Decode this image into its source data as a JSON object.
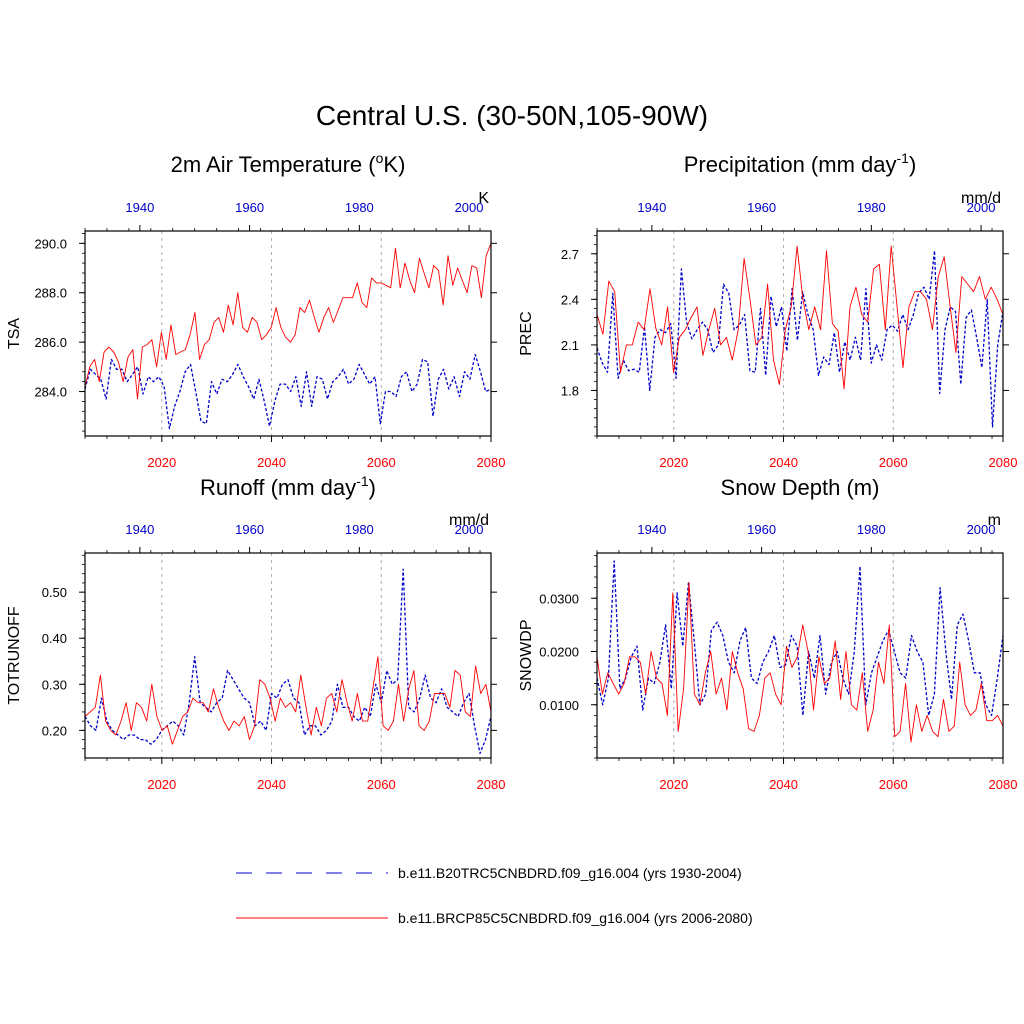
{
  "title": "Central U.S. (30-50N,105-90W)",
  "colors": {
    "historical": "#0000cc",
    "future": "#ff0000",
    "historical_axis": "#0000cc",
    "future_axis": "#ff0000",
    "grid": "#aaaaaa"
  },
  "legend": [
    {
      "label": "b.e11.B20TRC5CNBDRD.f09_g16.004 (yrs 1930-2004)",
      "style": "dashed",
      "color_key": "historical"
    },
    {
      "label": "b.e11.BRCP85C5CNBDRD.f09_g16.004 (yrs 2006-2080)",
      "style": "solid",
      "color_key": "future"
    }
  ],
  "chart_data": [
    {
      "type": "line",
      "title_main": "2m Air Temperature (",
      "title_sup": "o",
      "title_tail": "K)",
      "ylabel": "TSA",
      "units": "K",
      "ylim": [
        282.2,
        290.5
      ],
      "yticks": [
        "284.0",
        "286.0",
        "288.0",
        "290.0"
      ],
      "ytick_values": [
        284,
        286,
        288,
        290
      ],
      "top_xlim": [
        1930,
        2004
      ],
      "top_ticks": [
        1940,
        1960,
        1980,
        2000
      ],
      "bottom_xlim": [
        2006,
        2080
      ],
      "bottom_ticks": [
        2020,
        2040,
        2060,
        2080
      ],
      "series": [
        {
          "name": "historical",
          "values": [
            284.1,
            284.9,
            284.7,
            284.5,
            283.7,
            285.3,
            284.9,
            284.9,
            284.4,
            284.7,
            285.0,
            283.9,
            284.6,
            284.4,
            284.6,
            284.2,
            282.5,
            283.4,
            284.0,
            284.8,
            285.1,
            284.0,
            282.8,
            282.7,
            284.4,
            283.9,
            284.5,
            284.4,
            284.7,
            285.1,
            284.6,
            284.2,
            283.7,
            284.5,
            283.6,
            282.6,
            283.6,
            284.3,
            284.3,
            284.0,
            284.6,
            283.4,
            284.8,
            283.4,
            284.6,
            284.5,
            283.7,
            284.4,
            284.6,
            284.9,
            284.3,
            284.5,
            285.1,
            284.7,
            284.3,
            284.6,
            282.7,
            284.0,
            284.0,
            283.8,
            284.6,
            284.8,
            284.0,
            284.3,
            285.3,
            285.2,
            283.0,
            284.5,
            284.9,
            284.1,
            284.6,
            283.8,
            284.8,
            284.5,
            285.5,
            284.8,
            284.0,
            284.1
          ]
        },
        {
          "name": "future",
          "values": [
            284.2,
            285.0,
            285.3,
            284.4,
            285.6,
            285.8,
            285.6,
            285.2,
            284.4,
            285.4,
            285.7,
            283.7,
            285.8,
            285.9,
            286.1,
            285.0,
            286.4,
            285.3,
            286.7,
            285.5,
            285.6,
            285.7,
            286.3,
            287.2,
            285.3,
            285.9,
            286.1,
            286.8,
            287.0,
            286.4,
            287.5,
            286.7,
            288.0,
            286.6,
            286.4,
            287.0,
            286.8,
            286.1,
            286.3,
            286.6,
            287.4,
            286.6,
            286.2,
            286.0,
            286.3,
            287.4,
            287.2,
            287.7,
            287.0,
            286.4,
            287.0,
            287.4,
            286.8,
            287.3,
            287.8,
            287.8,
            287.8,
            288.4,
            287.6,
            287.4,
            288.6,
            288.4,
            288.4,
            288.3,
            288.2,
            289.8,
            288.2,
            289.2,
            288.5,
            288.0,
            289.4,
            288.8,
            288.2,
            289.1,
            288.9,
            287.5,
            289.5,
            288.3,
            289.0,
            288.5,
            288.0,
            289.1,
            289.0,
            287.8,
            289.5,
            290.0
          ]
        }
      ]
    },
    {
      "type": "line",
      "title_main": "Precipitation (mm day",
      "title_sup": "-1",
      "title_tail": ")",
      "ylabel": "PREC",
      "units": "mm/d",
      "ylim": [
        1.5,
        2.85
      ],
      "yticks": [
        "1.8",
        "2.1",
        "2.4",
        "2.7"
      ],
      "ytick_values": [
        1.8,
        2.1,
        2.4,
        2.7
      ],
      "top_xlim": [
        1930,
        2004
      ],
      "top_ticks": [
        1940,
        1960,
        1980,
        2000
      ],
      "bottom_xlim": [
        2006,
        2080
      ],
      "bottom_ticks": [
        2020,
        2040,
        2060,
        2080
      ],
      "series": [
        {
          "name": "historical",
          "values": [
            2.08,
            1.98,
            1.92,
            2.44,
            1.88,
            2.0,
            1.93,
            1.94,
            1.92,
            2.22,
            1.8,
            2.15,
            2.2,
            2.18,
            2.24,
            1.88,
            2.6,
            2.25,
            2.14,
            2.2,
            2.25,
            2.2,
            2.05,
            2.1,
            2.5,
            2.44,
            2.2,
            2.23,
            2.3,
            1.93,
            1.92,
            2.34,
            1.9,
            2.42,
            2.22,
            2.35,
            2.06,
            2.47,
            2.13,
            2.45,
            2.3,
            2.2,
            1.9,
            2.02,
            1.97,
            2.18,
            1.92,
            2.12,
            2.0,
            2.15,
            2.0,
            2.47,
            1.98,
            2.1,
            2.0,
            2.2,
            2.23,
            2.19,
            2.3,
            2.2,
            2.3,
            2.44,
            2.48,
            2.4,
            2.72,
            1.78,
            2.2,
            2.35,
            2.32,
            1.84,
            2.28,
            2.33,
            2.15,
            1.95,
            2.4,
            1.56,
            2.1,
            2.32
          ]
        },
        {
          "name": "future",
          "values": [
            2.3,
            2.17,
            2.52,
            2.45,
            1.92,
            2.1,
            2.1,
            2.25,
            2.2,
            2.47,
            2.21,
            2.1,
            2.35,
            1.92,
            2.15,
            2.2,
            2.28,
            2.35,
            2.03,
            2.2,
            2.34,
            2.1,
            2.15,
            2.0,
            2.2,
            2.67,
            2.4,
            2.1,
            2.15,
            2.5,
            2.0,
            1.84,
            2.2,
            2.35,
            2.75,
            2.4,
            2.2,
            2.35,
            2.2,
            2.72,
            2.24,
            2.19,
            1.81,
            2.35,
            2.48,
            2.3,
            2.25,
            2.6,
            2.63,
            2.2,
            2.75,
            2.35,
            1.95,
            2.35,
            2.45,
            2.45,
            2.4,
            2.2,
            2.55,
            2.68,
            2.36,
            2.05,
            2.55,
            2.5,
            2.45,
            2.55,
            2.4,
            2.48,
            2.4,
            2.3
          ]
        }
      ]
    },
    {
      "type": "line",
      "title_main": "Runoff (mm day",
      "title_sup": "-1",
      "title_tail": ")",
      "ylabel": "TOTRUNOFF",
      "units": "mm/d",
      "ylim": [
        0.14,
        0.585
      ],
      "yticks": [
        "0.20",
        "0.30",
        "0.40",
        "0.50"
      ],
      "ytick_values": [
        0.2,
        0.3,
        0.4,
        0.5
      ],
      "top_xlim": [
        1930,
        2004
      ],
      "top_ticks": [
        1940,
        1960,
        1980,
        2000
      ],
      "bottom_xlim": [
        2006,
        2080
      ],
      "bottom_ticks": [
        2020,
        2040,
        2060,
        2080
      ],
      "series": [
        {
          "name": "historical",
          "values": [
            0.23,
            0.21,
            0.2,
            0.27,
            0.22,
            0.2,
            0.19,
            0.18,
            0.19,
            0.19,
            0.18,
            0.18,
            0.17,
            0.18,
            0.2,
            0.21,
            0.22,
            0.21,
            0.19,
            0.26,
            0.36,
            0.26,
            0.25,
            0.24,
            0.26,
            0.27,
            0.33,
            0.31,
            0.29,
            0.27,
            0.26,
            0.21,
            0.22,
            0.2,
            0.28,
            0.27,
            0.3,
            0.31,
            0.27,
            0.26,
            0.19,
            0.21,
            0.21,
            0.19,
            0.2,
            0.22,
            0.3,
            0.25,
            0.25,
            0.23,
            0.22,
            0.25,
            0.23,
            0.3,
            0.26,
            0.33,
            0.3,
            0.31,
            0.55,
            0.25,
            0.24,
            0.27,
            0.32,
            0.27,
            0.26,
            0.29,
            0.25,
            0.24,
            0.23,
            0.26,
            0.28,
            0.21,
            0.15,
            0.18,
            0.23
          ]
        },
        {
          "name": "future",
          "values": [
            0.23,
            0.24,
            0.25,
            0.32,
            0.22,
            0.2,
            0.19,
            0.22,
            0.26,
            0.2,
            0.26,
            0.25,
            0.22,
            0.3,
            0.23,
            0.2,
            0.21,
            0.17,
            0.2,
            0.23,
            0.24,
            0.27,
            0.26,
            0.26,
            0.24,
            0.29,
            0.25,
            0.22,
            0.2,
            0.22,
            0.21,
            0.23,
            0.18,
            0.21,
            0.31,
            0.3,
            0.27,
            0.22,
            0.27,
            0.25,
            0.26,
            0.24,
            0.32,
            0.25,
            0.19,
            0.25,
            0.21,
            0.27,
            0.28,
            0.24,
            0.31,
            0.26,
            0.22,
            0.28,
            0.22,
            0.22,
            0.29,
            0.36,
            0.21,
            0.2,
            0.22,
            0.3,
            0.22,
            0.29,
            0.33,
            0.21,
            0.2,
            0.22,
            0.28,
            0.28,
            0.28,
            0.25,
            0.33,
            0.32,
            0.24,
            0.23,
            0.34,
            0.28,
            0.3,
            0.24
          ]
        }
      ]
    },
    {
      "type": "line",
      "title_main": "Snow Depth (m)",
      "title_sup": "",
      "title_tail": "",
      "ylabel": "SNOWDP",
      "units": "m",
      "ylim": [
        0.0,
        0.0385
      ],
      "yticks": [
        "0.0100",
        "0.0200",
        "0.0300"
      ],
      "ytick_values": [
        0.01,
        0.02,
        0.03
      ],
      "top_xlim": [
        1930,
        2004
      ],
      "top_ticks": [
        1940,
        1960,
        1980,
        2000
      ],
      "bottom_xlim": [
        2006,
        2080
      ],
      "bottom_ticks": [
        2020,
        2040,
        2060,
        2080
      ],
      "series": [
        {
          "name": "historical",
          "values": [
            0.015,
            0.01,
            0.015,
            0.037,
            0.013,
            0.015,
            0.019,
            0.021,
            0.009,
            0.015,
            0.014,
            0.018,
            0.025,
            0.013,
            0.031,
            0.021,
            0.033,
            0.022,
            0.01,
            0.012,
            0.024,
            0.0255,
            0.023,
            0.018,
            0.016,
            0.022,
            0.0245,
            0.015,
            0.014,
            0.018,
            0.02,
            0.023,
            0.017,
            0.0175,
            0.023,
            0.021,
            0.008,
            0.02,
            0.015,
            0.023,
            0.012,
            0.018,
            0.02,
            0.015,
            0.012,
            0.02,
            0.036,
            0.01,
            0.016,
            0.019,
            0.022,
            0.024,
            0.02,
            0.016,
            0.015,
            0.023,
            0.02,
            0.018,
            0.008,
            0.012,
            0.032,
            0.02,
            0.011,
            0.025,
            0.027,
            0.022,
            0.016,
            0.016,
            0.01,
            0.008,
            0.015,
            0.023
          ]
        },
        {
          "name": "future",
          "values": [
            0.019,
            0.012,
            0.016,
            0.014,
            0.012,
            0.014,
            0.019,
            0.019,
            0.018,
            0.012,
            0.02,
            0.015,
            0.014,
            0.008,
            0.031,
            0.005,
            0.013,
            0.033,
            0.012,
            0.01,
            0.016,
            0.02,
            0.012,
            0.015,
            0.009,
            0.02,
            0.016,
            0.013,
            0.0055,
            0.005,
            0.008,
            0.015,
            0.016,
            0.012,
            0.01,
            0.021,
            0.017,
            0.019,
            0.025,
            0.02,
            0.009,
            0.019,
            0.014,
            0.015,
            0.022,
            0.011,
            0.02,
            0.01,
            0.009,
            0.016,
            0.005,
            0.009,
            0.018,
            0.014,
            0.025,
            0.004,
            0.005,
            0.014,
            0.003,
            0.01,
            0.005,
            0.008,
            0.005,
            0.004,
            0.011,
            0.005,
            0.006,
            0.018,
            0.01,
            0.008,
            0.009,
            0.014,
            0.007,
            0.007,
            0.008,
            0.006
          ]
        }
      ]
    }
  ]
}
